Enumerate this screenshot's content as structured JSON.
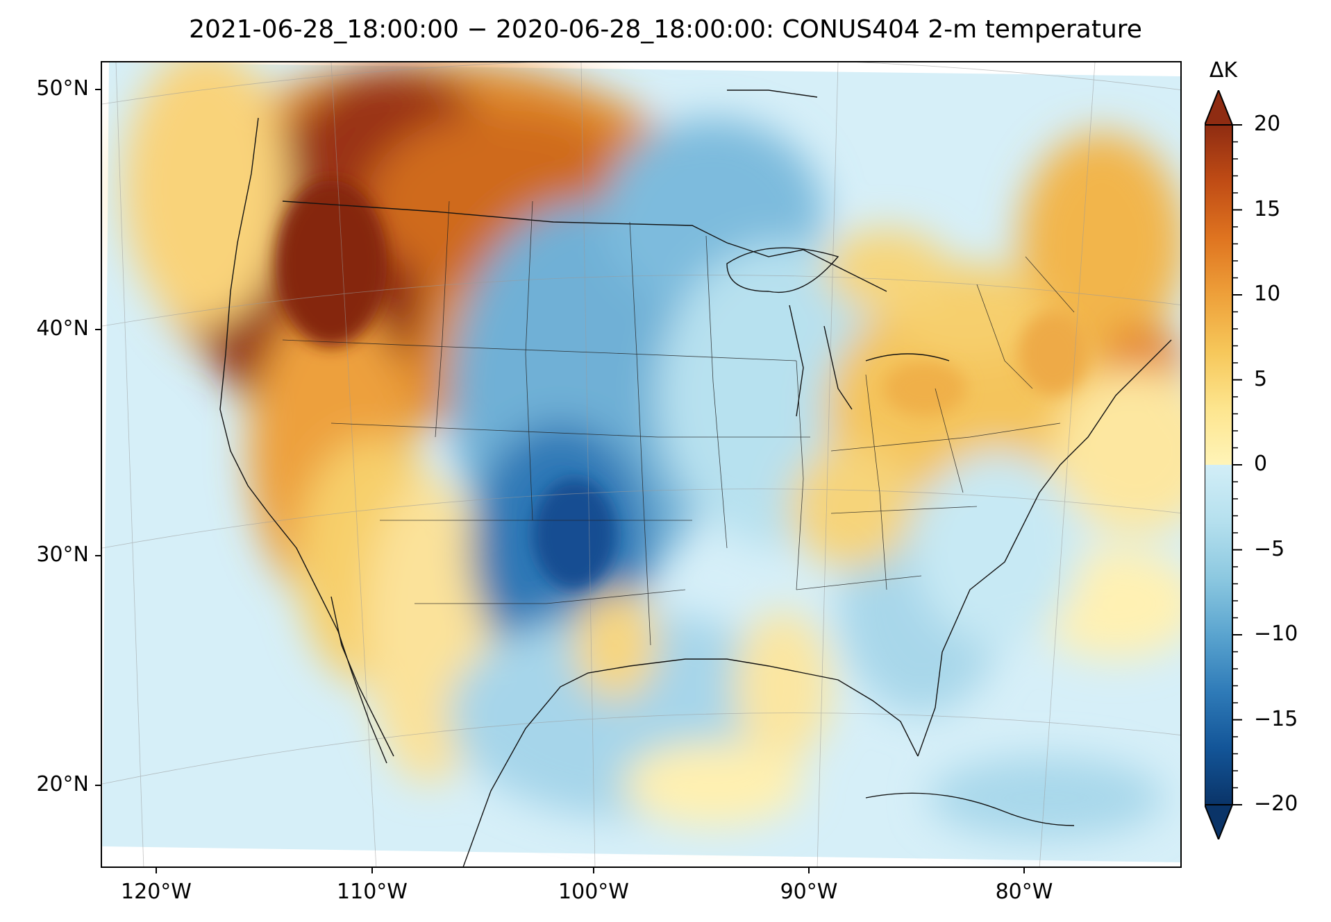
{
  "title": "2021-06-28_18:00:00 − 2020-06-28_18:00:00: CONUS404 2-m temperature",
  "colorbar": {
    "unit": "ΔK",
    "ticks": [
      "20",
      "15",
      "10",
      "5",
      "0",
      "−5",
      "−10",
      "−15",
      "−20"
    ],
    "colors_warm": [
      "#fff4b8",
      "#fde58e",
      "#f6c75a",
      "#eea03a",
      "#df7420",
      "#c04c15",
      "#8f2c12"
    ],
    "colors_cool": [
      "#d2eef7",
      "#b5e0ee",
      "#8cc8e0",
      "#5aa4cf",
      "#2f7bb8",
      "#135598",
      "#0a3468"
    ]
  },
  "lat_labels": [
    "50°N",
    "40°N",
    "30°N",
    "20°N"
  ],
  "lon_labels": [
    "120°W",
    "110°W",
    "100°W",
    "90°W",
    "80°W"
  ],
  "map": {
    "projection": "Lambert conformal",
    "field": "2-m temperature difference",
    "range": [
      -20,
      20
    ]
  }
}
